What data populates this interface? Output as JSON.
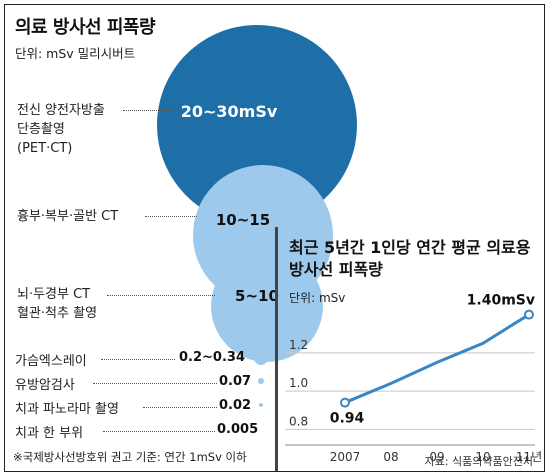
{
  "left": {
    "title": "의료 방사선 피폭량",
    "unit": "단위: mSv 밀리시버트",
    "bubbles": [
      {
        "value": "20~30mSv",
        "label_lines": [
          "전신 양전자방출",
          "단층촬영",
          "(PET·CT)"
        ]
      },
      {
        "value": "10~15",
        "label_lines": [
          "흉부·복부·골반 CT"
        ]
      },
      {
        "value": "5~10",
        "label_lines": [
          "뇌·두경부 CT",
          "혈관·척추 촬영"
        ]
      }
    ],
    "rows": [
      {
        "label": "가슴엑스레이",
        "value": "0.2~0.34"
      },
      {
        "label": "유방암검사",
        "value": "0.07"
      },
      {
        "label": "치과 파노라마 촬영",
        "value": "0.02"
      },
      {
        "label": "치과 한 부위",
        "value": "0.005"
      }
    ],
    "note": "※국제방사선방호위 권고 기준: 연간 1mSv 이하"
  },
  "right": {
    "title_line1": "최근 5년간 1인당 연간 평균 의료용",
    "title_line2": "방사선 피폭량",
    "unit": "단위: mSv",
    "source": "자료: 식품의약품안전처"
  },
  "chart_data": {
    "type": "line",
    "title": "최근 5년간 1인당 연간 평균 의료용 방사선 피폭량",
    "ylabel": "단위: mSv",
    "x": [
      "2007",
      "08",
      "09",
      "10",
      "11년"
    ],
    "y_ticks": [
      "0.8",
      "1.0",
      "1.2"
    ],
    "ylim": [
      0.76,
      1.45
    ],
    "series": [
      {
        "values": [
          0.94,
          1.04,
          1.15,
          1.25,
          1.4
        ]
      }
    ],
    "point_labels": [
      {
        "index": 0,
        "text": "0.94"
      },
      {
        "index": 4,
        "text": "1.40mSv"
      }
    ],
    "line_color": "#3a86c5",
    "grid": true
  }
}
